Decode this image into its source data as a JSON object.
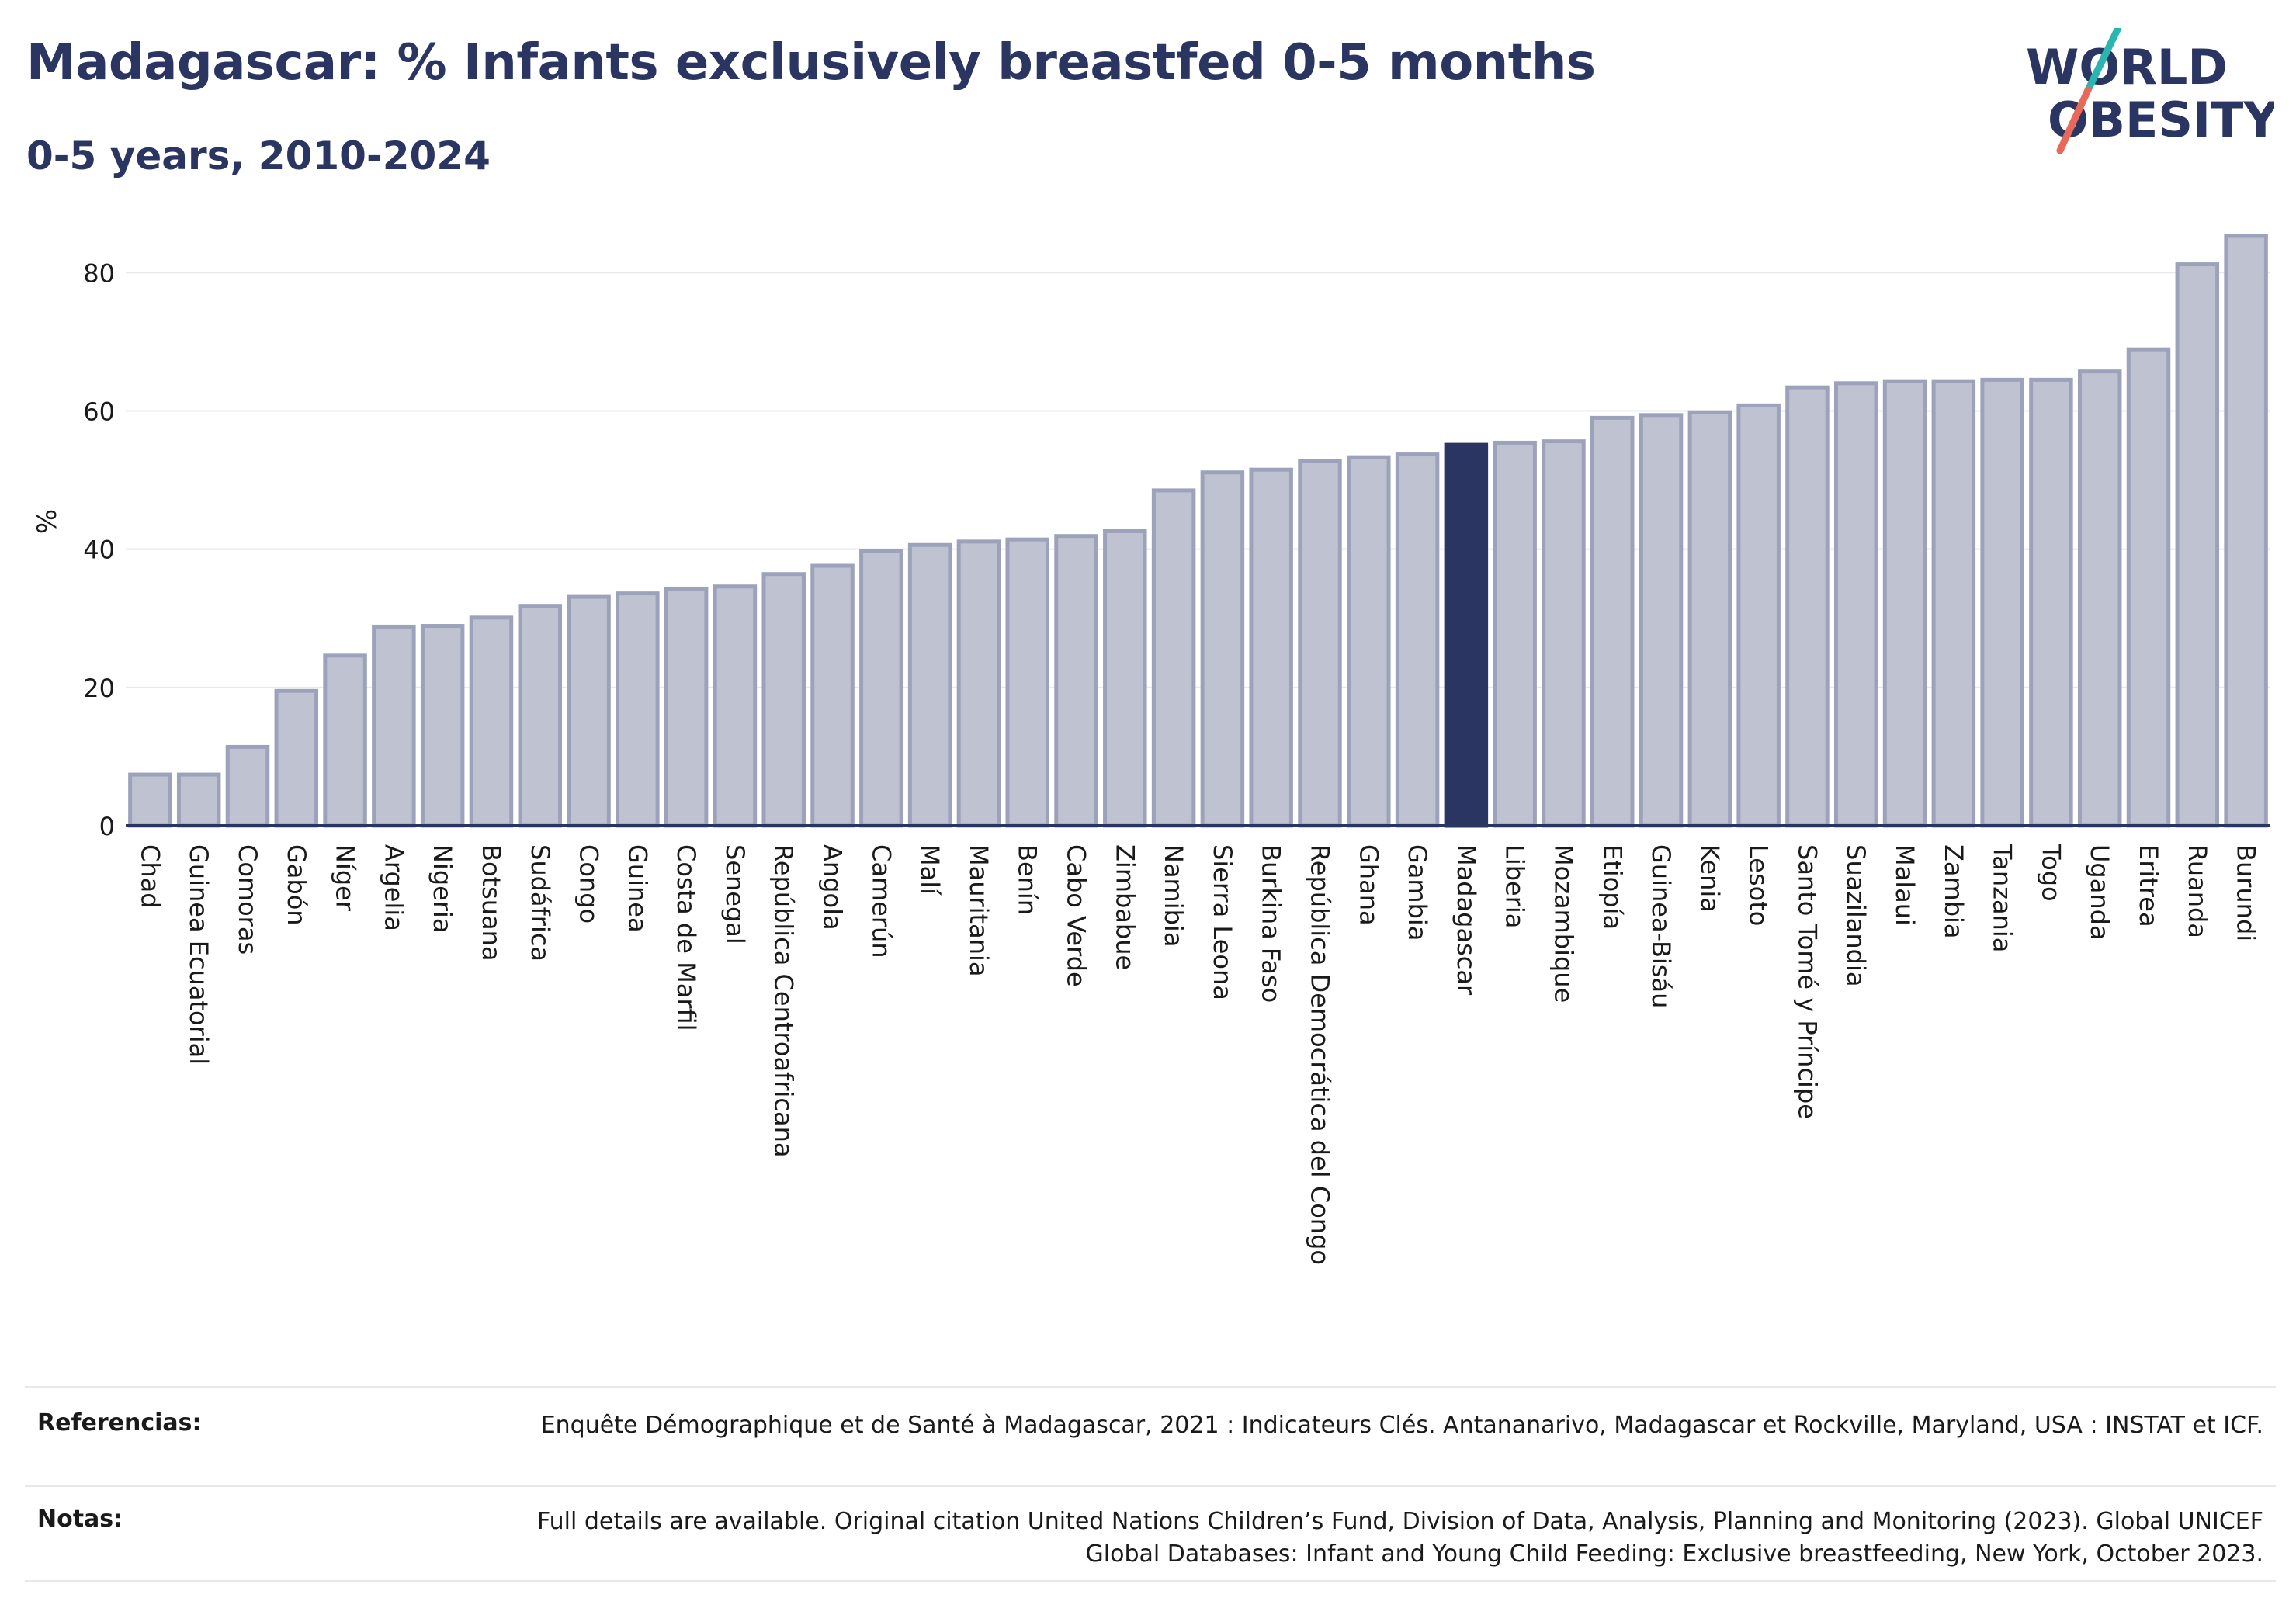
{
  "title": "Madagascar: % Infants exclusively breastfed 0-5 months",
  "subtitle": "0-5 years, 2010-2024",
  "logo": {
    "line1": "WORLD",
    "line2": "OBESITY",
    "accent_colors": [
      "#2bb5b0",
      "#e8695a"
    ]
  },
  "colors": {
    "bar": "#bfc3d1",
    "bar_border": "#9ca2b9",
    "highlight": "#2a3561",
    "grid": "#e6e8ee",
    "axis": "#2a3561"
  },
  "chart_data": {
    "type": "bar",
    "xlabel": "",
    "ylabel": "%",
    "ylim": [
      0,
      88
    ],
    "yticks": [
      0,
      20,
      40,
      60,
      80
    ],
    "grid": true,
    "highlight": "Madagascar",
    "categories": [
      "Chad",
      "Guinea Ecuatorial",
      "Comoras",
      "Gabón",
      "Níger",
      "Argelia",
      "Nigeria",
      "Botsuana",
      "Sudáfrica",
      "Congo",
      "Guinea",
      "Costa de Marfil",
      "Senegal",
      "República Centroafricana",
      "Angola",
      "Camerún",
      "Malí",
      "Mauritania",
      "Benín",
      "Cabo Verde",
      "Zimbabue",
      "Namibia",
      "Sierra Leona",
      "Burkina Faso",
      "República Democrática del Congo",
      "Ghana",
      "Gambia",
      "Madagascar",
      "Liberia",
      "Mozambique",
      "Etiopía",
      "Guinea-Bisáu",
      "Kenia",
      "Lesoto",
      "Santo Tomé y Príncipe",
      "Suazilandia",
      "Malaui",
      "Zambia",
      "Tanzania",
      "Togo",
      "Uganda",
      "Eritrea",
      "Ruanda",
      "Burundi"
    ],
    "values": [
      7.4,
      7.4,
      11.4,
      19.5,
      24.6,
      28.8,
      28.9,
      30.1,
      31.8,
      33.1,
      33.6,
      34.3,
      34.6,
      36.4,
      37.6,
      39.7,
      40.6,
      41.1,
      41.4,
      41.9,
      42.6,
      48.5,
      51.1,
      51.5,
      52.7,
      53.3,
      53.7,
      55.1,
      55.4,
      55.6,
      59.0,
      59.4,
      59.8,
      60.8,
      63.4,
      64.0,
      64.3,
      64.3,
      64.5,
      64.5,
      65.7,
      68.9,
      81.2,
      85.3
    ]
  },
  "footer": {
    "references_label": "Referencias:",
    "references_text": "Enquête Démographique et de Santé à Madagascar, 2021 : Indicateurs Clés. Antananarivo, Madagascar et Rockville, Maryland, USA : INSTAT et ICF.",
    "notes_label": "Notas:",
    "notes_text": "Full details are available. Original citation United Nations Children’s Fund, Division of Data, Analysis, Planning and Monitoring (2023). Global UNICEF Global Databases: Infant and Young Child Feeding: Exclusive breastfeeding, New York, October 2023."
  }
}
